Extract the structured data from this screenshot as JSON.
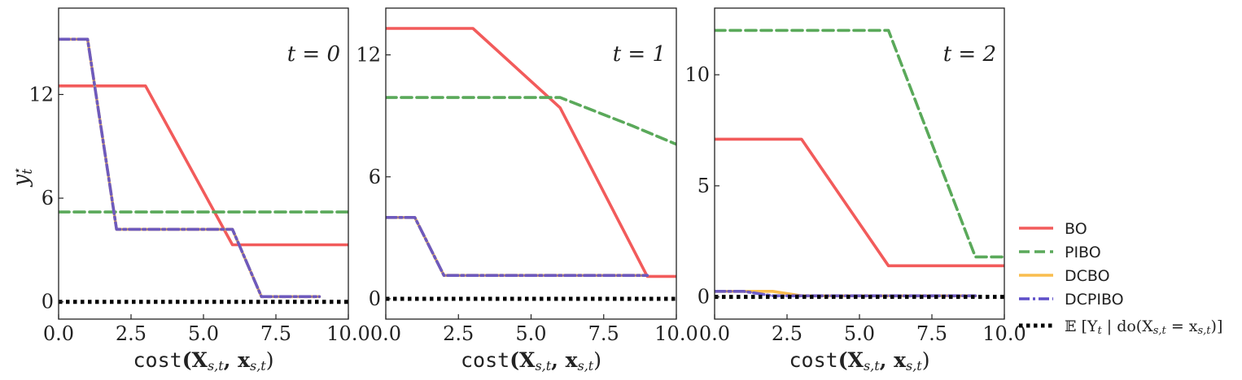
{
  "figure": {
    "xlabel": {
      "fn": "cost",
      "args": "(X",
      "s1": "s,t",
      "mid": ", x",
      "s2": "s,t",
      "close": ")"
    },
    "ylabel": {
      "main": "y",
      "sub": "t",
      "sup": "⋆"
    }
  },
  "legend": {
    "items": [
      {
        "series": "BO",
        "label": "BO"
      },
      {
        "series": "PIBO",
        "label": "PIBO"
      },
      {
        "series": "DCBO",
        "label": "DCBO"
      },
      {
        "series": "DCPIBO",
        "label": "DCPIBO"
      },
      {
        "series": "optimal",
        "label": "𝔼 [Y",
        "label_sub": "t",
        "label_mid": " | do(X",
        "label_sub2": "s,t",
        "label_eq": " = x",
        "label_sub3": "s,t",
        "label_end": ")]"
      }
    ],
    "placement": "right-bottom"
  },
  "styles": {
    "BO": {
      "color": "#f25b5b",
      "dash": "solid"
    },
    "PIBO": {
      "color": "#5aa95a",
      "dash": "dashed"
    },
    "DCBO": {
      "color": "#f9bd4f",
      "dash": "solid"
    },
    "DCPIBO": {
      "color": "#5e4fc9",
      "dash": "dashdot"
    },
    "optimal": {
      "color": "#000000",
      "dash": "dotted"
    }
  },
  "chart_data": [
    {
      "type": "line",
      "panel_label": "t = 0",
      "xlim": [
        0,
        10
      ],
      "ylim": [
        -1,
        17
      ],
      "xticks": [
        "0.0",
        "2.5",
        "5.0",
        "7.5",
        "10.0"
      ],
      "xtick_values": [
        0,
        2.5,
        5,
        7.5,
        10
      ],
      "yticks": [
        "0",
        "6",
        "12"
      ],
      "ytick_values": [
        0,
        6,
        12
      ],
      "series": [
        {
          "name": "BO",
          "x": [
            0,
            3,
            6,
            10
          ],
          "y": [
            12.5,
            12.5,
            3.3,
            3.3
          ]
        },
        {
          "name": "PIBO",
          "x": [
            0,
            10
          ],
          "y": [
            5.2,
            5.2
          ]
        },
        {
          "name": "DCBO",
          "x": [
            0,
            1,
            2,
            6,
            7,
            9
          ],
          "y": [
            15.2,
            15.2,
            4.2,
            4.2,
            0.3,
            0.3
          ]
        },
        {
          "name": "DCPIBO",
          "x": [
            0,
            1,
            2,
            6,
            7,
            9
          ],
          "y": [
            15.2,
            15.2,
            4.2,
            4.2,
            0.3,
            0.3
          ]
        },
        {
          "name": "optimal",
          "x": [
            0,
            10
          ],
          "y": [
            0,
            0
          ]
        }
      ]
    },
    {
      "type": "line",
      "panel_label": "t = 1",
      "xlim": [
        0,
        10
      ],
      "ylim": [
        -1,
        14.3
      ],
      "xticks": [
        "0.0",
        "2.5",
        "5.0",
        "7.5",
        "10.0"
      ],
      "xtick_values": [
        0,
        2.5,
        5,
        7.5,
        10
      ],
      "yticks": [
        "0",
        "6",
        "12"
      ],
      "ytick_values": [
        0,
        6,
        12
      ],
      "series": [
        {
          "name": "BO",
          "x": [
            0,
            3,
            6,
            9,
            10
          ],
          "y": [
            13.3,
            13.3,
            9.4,
            1.1,
            1.1
          ]
        },
        {
          "name": "PIBO",
          "x": [
            0,
            6,
            8.5,
            10
          ],
          "y": [
            9.9,
            9.9,
            8.5,
            7.6
          ]
        },
        {
          "name": "DCBO",
          "x": [
            0,
            1,
            2,
            9
          ],
          "y": [
            4.0,
            4.0,
            1.15,
            1.15
          ]
        },
        {
          "name": "DCPIBO",
          "x": [
            0,
            1,
            2,
            9
          ],
          "y": [
            4.0,
            4.0,
            1.15,
            1.15
          ]
        },
        {
          "name": "optimal",
          "x": [
            0,
            10
          ],
          "y": [
            0,
            0
          ]
        }
      ]
    },
    {
      "type": "line",
      "panel_label": "t = 2",
      "xlim": [
        0,
        10
      ],
      "ylim": [
        -1,
        13
      ],
      "xticks": [
        "0.0",
        "2.5",
        "5.0",
        "7.5",
        "10.0"
      ],
      "xtick_values": [
        0,
        2.5,
        5,
        7.5,
        10
      ],
      "yticks": [
        "0",
        "5",
        "10"
      ],
      "ytick_values": [
        0,
        5,
        10
      ],
      "series": [
        {
          "name": "BO",
          "x": [
            0,
            3,
            6,
            10
          ],
          "y": [
            7.1,
            7.1,
            1.4,
            1.4
          ]
        },
        {
          "name": "PIBO",
          "x": [
            0,
            6,
            9,
            10
          ],
          "y": [
            12.0,
            12.0,
            1.8,
            1.8
          ]
        },
        {
          "name": "DCBO",
          "x": [
            0,
            2,
            3,
            9
          ],
          "y": [
            0.25,
            0.25,
            0.05,
            0.05
          ]
        },
        {
          "name": "DCPIBO",
          "x": [
            0,
            1,
            2,
            9
          ],
          "y": [
            0.25,
            0.25,
            0.05,
            0.05
          ]
        },
        {
          "name": "optimal",
          "x": [
            0,
            10
          ],
          "y": [
            0,
            0
          ]
        }
      ]
    }
  ]
}
